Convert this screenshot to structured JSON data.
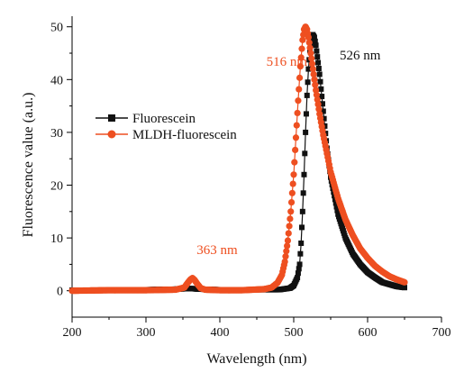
{
  "chart_data": {
    "type": "scatter",
    "title": "",
    "xlabel": "Wavelength (nm)",
    "ylabel": "Fluorescence value (a.u.)",
    "xlim": [
      200,
      700
    ],
    "ylim": [
      -5,
      52
    ],
    "xticks": [
      200,
      300,
      400,
      500,
      600,
      700
    ],
    "yticks": [
      0,
      10,
      20,
      30,
      40,
      50
    ],
    "grid": false,
    "legend_position": "upper-left",
    "series": [
      {
        "name": "Fluorescein",
        "color": "#111111",
        "marker": "square",
        "x": [
          200,
          250,
          300,
          340,
          355,
          363,
          372,
          400,
          450,
          480,
          495,
          500,
          505,
          508,
          510,
          512,
          514,
          516,
          518,
          520,
          522,
          524,
          526,
          528,
          530,
          535,
          540,
          545,
          550,
          560,
          570,
          580,
          590,
          600,
          610,
          620,
          630,
          640,
          650
        ],
        "values": [
          0.1,
          0.1,
          0.2,
          0.3,
          0.4,
          0.4,
          0.3,
          0.2,
          0.2,
          0.2,
          0.5,
          1.0,
          2.5,
          5.0,
          9.0,
          15.0,
          22.0,
          30.0,
          37.0,
          42.0,
          45.5,
          47.5,
          48.5,
          48.0,
          46.5,
          41.0,
          34.0,
          27.0,
          21.5,
          14.5,
          10.0,
          7.0,
          5.0,
          3.5,
          2.5,
          1.6,
          1.2,
          0.8,
          0.6
        ]
      },
      {
        "name": "MLDH-fluorescein",
        "color": "#ee4f20",
        "marker": "circle",
        "x": [
          200,
          250,
          300,
          340,
          352,
          356,
          360,
          363,
          366,
          370,
          374,
          380,
          400,
          430,
          460,
          470,
          478,
          484,
          488,
          492,
          496,
          500,
          503,
          506,
          509,
          512,
          514,
          516,
          518,
          520,
          523,
          526,
          530,
          535,
          540,
          545,
          550,
          560,
          570,
          580,
          590,
          600,
          610,
          620,
          630,
          640,
          650
        ],
        "values": [
          0.0,
          0.1,
          0.1,
          0.2,
          0.6,
          1.4,
          2.1,
          2.4,
          2.0,
          1.2,
          0.5,
          0.2,
          0.1,
          0.1,
          0.3,
          0.6,
          1.5,
          3.0,
          5.5,
          9.5,
          15.0,
          22.0,
          29.0,
          36.0,
          42.5,
          47.5,
          49.5,
          50.0,
          49.5,
          48.0,
          45.0,
          42.0,
          38.0,
          33.5,
          29.5,
          26.0,
          22.5,
          17.5,
          13.5,
          10.5,
          8.0,
          6.2,
          4.7,
          3.6,
          2.7,
          2.1,
          1.6
        ]
      }
    ],
    "annotations": [
      {
        "text": "516 nm",
        "x": 516,
        "color": "#ee4f20"
      },
      {
        "text": "526 nm",
        "x": 526,
        "color": "#111111"
      },
      {
        "text": "363 nm",
        "x": 363,
        "color": "#ee4f20"
      }
    ]
  }
}
